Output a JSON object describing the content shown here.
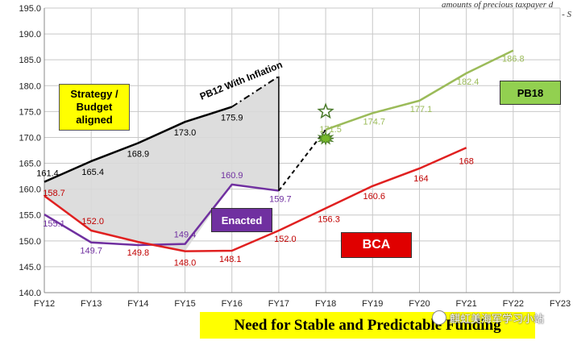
{
  "chart_data": {
    "type": "line",
    "categories": [
      "FY12",
      "FY13",
      "FY14",
      "FY15",
      "FY16",
      "FY17",
      "FY18",
      "FY19",
      "FY20",
      "FY21",
      "FY22",
      "FY23"
    ],
    "ylim": [
      140.0,
      195.0
    ],
    "yticks": [
      "140.0",
      "145.0",
      "150.0",
      "155.0",
      "160.0",
      "165.0",
      "170.0",
      "175.0",
      "180.0",
      "185.0",
      "190.0",
      "195.0"
    ],
    "grid": true,
    "series": [
      {
        "key": "strategy",
        "color": "#000000",
        "points": [
          {
            "x": "FY12",
            "y": 161.4,
            "label": "161.4"
          },
          {
            "x": "FY13",
            "y": 165.4,
            "label": "165.4"
          },
          {
            "x": "FY14",
            "y": 168.9,
            "label": "168.9"
          },
          {
            "x": "FY15",
            "y": 173.0,
            "label": "173.0"
          },
          {
            "x": "FY16",
            "y": 175.9,
            "label": "175.9"
          }
        ]
      },
      {
        "key": "pb12-inflation",
        "name": "PB12 With Inflation",
        "color": "#000000",
        "dashed": true,
        "points": [
          {
            "x": "FY16",
            "y": 175.9
          },
          {
            "x": "FY17",
            "y": 181.8
          }
        ]
      },
      {
        "key": "enacted",
        "name": "Enacted",
        "color": "#7030a0",
        "points": [
          {
            "x": "FY12",
            "y": 155.1,
            "label": "155.1"
          },
          {
            "x": "FY13",
            "y": 149.7,
            "label": "149.7"
          },
          {
            "x": "FY14",
            "y": 149.2,
            "label": ""
          },
          {
            "x": "FY15",
            "y": 149.4,
            "label": "149.4"
          },
          {
            "x": "FY16",
            "y": 160.9,
            "label": "160.9"
          },
          {
            "x": "FY17",
            "y": 159.7,
            "label": "159.7"
          }
        ]
      },
      {
        "key": "bca",
        "name": "BCA",
        "color": "#e02020",
        "points": [
          {
            "x": "FY12",
            "y": 158.7,
            "label": "158.7"
          },
          {
            "x": "FY13",
            "y": 152.0,
            "label": "152.0"
          },
          {
            "x": "FY14",
            "y": 149.8,
            "label": "149.8"
          },
          {
            "x": "FY15",
            "y": 148.0,
            "label": "148.0"
          },
          {
            "x": "FY16",
            "y": 148.1,
            "label": "148.1"
          },
          {
            "x": "FY17",
            "y": 152.0,
            "label": "152.0"
          },
          {
            "x": "FY18",
            "y": 156.3,
            "label": "156.3"
          },
          {
            "x": "FY19",
            "y": 160.6,
            "label": "160.6"
          },
          {
            "x": "FY20",
            "y": 164,
            "label": "164"
          },
          {
            "x": "FY21",
            "y": 168,
            "label": "168"
          }
        ]
      },
      {
        "key": "pb18",
        "name": "PB18",
        "color": "#9bbb59",
        "points": [
          {
            "x": "FY18",
            "y": 171.5,
            "label": "171.5"
          },
          {
            "x": "FY19",
            "y": 174.7,
            "label": "174.7"
          },
          {
            "x": "FY20",
            "y": 177.1,
            "label": "177.1"
          },
          {
            "x": "FY21",
            "y": 182.4,
            "label": "182.4"
          },
          {
            "x": "FY22",
            "y": 186.8,
            "label": "186.8"
          }
        ]
      },
      {
        "key": "bridge",
        "color": "#000000",
        "dashed": true,
        "points": [
          {
            "x": "FY17",
            "y": 159.7
          },
          {
            "x": "FY18",
            "y": 171.5
          }
        ]
      }
    ],
    "shaded_gap": {
      "upper": [
        [
          "FY12",
          161.4
        ],
        [
          "FY13",
          165.4
        ],
        [
          "FY14",
          168.9
        ],
        [
          "FY15",
          173.0
        ],
        [
          "FY16",
          175.9
        ],
        [
          "FY17",
          181.8
        ]
      ],
      "lower": [
        [
          "FY17",
          159.7
        ],
        [
          "FY16",
          160.9
        ],
        [
          "FY15",
          148.0
        ],
        [
          "FY14",
          149.8
        ],
        [
          "FY13",
          152.0
        ],
        [
          "FY12",
          158.7
        ]
      ],
      "color": "#d9d9d9"
    },
    "markers": [
      {
        "shape": "star",
        "x": "FY18",
        "y": 175.0,
        "color": "#4a7a2a"
      },
      {
        "shape": "burst",
        "x": "FY18",
        "y": 169.8,
        "color": "#4a7a2a"
      }
    ]
  },
  "callouts": {
    "strategy": "Strategy /\nBudget\naligned",
    "pb12": "PB12 With Inflation",
    "pb18": "PB18",
    "enacted": "Enacted",
    "bca": "BCA"
  },
  "banner": "Need for Stable and Predictable Funding",
  "top_note": {
    "line1": "amounts of precious taxpayer d",
    "line2": "- S"
  },
  "watermark": "麒虹美海军学习小站"
}
